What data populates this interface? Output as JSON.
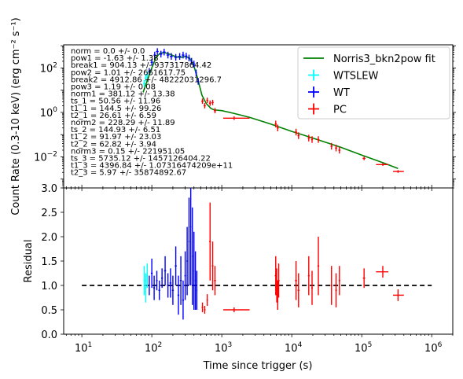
{
  "chart_data": [
    {
      "type": "line",
      "panel": "top",
      "xlabel": "",
      "ylabel": "Count Rate (0.3-10 keV) (erg cm⁻² s⁻¹)",
      "xscale": "log",
      "yscale": "log",
      "xlim": [
        5.5,
        2000000
      ],
      "ylim": [
        0.0004,
        1100
      ],
      "yticks": [
        {
          "v": 100,
          "base": "10",
          "exp": "2"
        },
        {
          "v": 1,
          "base": "10",
          "exp": "0"
        },
        {
          "v": 0.01,
          "base": "10",
          "exp": "−2"
        }
      ],
      "legend_position": "top-right",
      "legend": [
        {
          "label": "Norris3_bkn2pow fit",
          "color": "#008000",
          "kind": "line"
        },
        {
          "label": "WTSLEW",
          "color": "#00ffff",
          "kind": "cross"
        },
        {
          "label": "WT",
          "color": "#0000ff",
          "kind": "cross"
        },
        {
          "label": "PC",
          "color": "#ff0000",
          "kind": "cross"
        }
      ],
      "fit_line": {
        "color": "#008000",
        "x": [
          75,
          90,
          100,
          115,
          130,
          150,
          180,
          220,
          260,
          300,
          350,
          400,
          450,
          520,
          600,
          700,
          780,
          1000,
          1500,
          2500,
          5000,
          10000,
          20000,
          50000,
          100000,
          200000,
          330000
        ],
        "y": [
          8,
          40,
          100,
          300,
          450,
          500,
          420,
          320,
          300,
          330,
          270,
          120,
          35,
          6,
          2.5,
          1.5,
          1.3,
          1.2,
          0.9,
          0.6,
          0.3,
          0.14,
          0.07,
          0.027,
          0.012,
          0.0055,
          0.003
        ]
      },
      "series": [
        {
          "name": "WTSLEW",
          "color": "#00ffff",
          "points": [
            {
              "x": 78,
              "y": 20,
              "xerr": 3,
              "yerr_log": 0.15
            },
            {
              "x": 82,
              "y": 35,
              "xerr": 3,
              "yerr_log": 0.15
            },
            {
              "x": 86,
              "y": 50,
              "xerr": 3,
              "yerr_log": 0.15
            }
          ]
        },
        {
          "name": "WT",
          "color": "#0000ff",
          "points": [
            {
              "x": 92,
              "y": 70,
              "xerr": 3,
              "yerr_log": 0.15
            },
            {
              "x": 100,
              "y": 180,
              "xerr": 4,
              "yerr_log": 0.15
            },
            {
              "x": 110,
              "y": 380,
              "xerr": 4,
              "yerr_log": 0.15
            },
            {
              "x": 120,
              "y": 550,
              "xerr": 5,
              "yerr_log": 0.15
            },
            {
              "x": 135,
              "y": 420,
              "xerr": 6,
              "yerr_log": 0.15
            },
            {
              "x": 150,
              "y": 520,
              "xerr": 7,
              "yerr_log": 0.15
            },
            {
              "x": 170,
              "y": 380,
              "xerr": 8,
              "yerr_log": 0.15
            },
            {
              "x": 190,
              "y": 330,
              "xerr": 9,
              "yerr_log": 0.15
            },
            {
              "x": 220,
              "y": 300,
              "xerr": 10,
              "yerr_log": 0.15
            },
            {
              "x": 250,
              "y": 330,
              "xerr": 12,
              "yerr_log": 0.15
            },
            {
              "x": 280,
              "y": 380,
              "xerr": 12,
              "yerr_log": 0.15
            },
            {
              "x": 310,
              "y": 340,
              "xerr": 12,
              "yerr_log": 0.15
            },
            {
              "x": 340,
              "y": 280,
              "xerr": 12,
              "yerr_log": 0.15
            },
            {
              "x": 370,
              "y": 200,
              "xerr": 12,
              "yerr_log": 0.15
            },
            {
              "x": 400,
              "y": 150,
              "xerr": 12,
              "yerr_log": 0.15
            },
            {
              "x": 430,
              "y": 60,
              "xerr": 12,
              "yerr_log": 0.15
            },
            {
              "x": 460,
              "y": 25,
              "xerr": 12,
              "yerr_log": 0.15
            }
          ]
        },
        {
          "name": "PC",
          "color": "#ff0000",
          "points": [
            {
              "x": 530,
              "y": 3.2,
              "xerr": 20,
              "yerr_log": 0.12
            },
            {
              "x": 570,
              "y": 2.0,
              "xerr": 20,
              "yerr_log": 0.12
            },
            {
              "x": 620,
              "y": 3.5,
              "xerr": 20,
              "yerr_log": 0.12
            },
            {
              "x": 680,
              "y": 2.6,
              "xerr": 25,
              "yerr_log": 0.12
            },
            {
              "x": 740,
              "y": 2.8,
              "xerr": 25,
              "yerr_log": 0.12
            },
            {
              "x": 800,
              "y": 1.2,
              "xerr": 30,
              "yerr_log": 0.12
            },
            {
              "x": 1500,
              "y": 0.55,
              "xerr_lo": 450,
              "xerr_hi": 1000,
              "yerr_log": 0.08
            },
            {
              "x": 5900,
              "y": 0.3,
              "xerr": 200,
              "yerr_log": 0.15
            },
            {
              "x": 6300,
              "y": 0.2,
              "xerr": 200,
              "yerr_log": 0.15
            },
            {
              "x": 11500,
              "y": 0.13,
              "xerr": 400,
              "yerr_log": 0.15
            },
            {
              "x": 12500,
              "y": 0.09,
              "xerr": 400,
              "yerr_log": 0.15
            },
            {
              "x": 17500,
              "y": 0.07,
              "xerr": 600,
              "yerr_log": 0.15
            },
            {
              "x": 19500,
              "y": 0.06,
              "xerr": 600,
              "yerr_log": 0.15
            },
            {
              "x": 24000,
              "y": 0.06,
              "xerr": 800,
              "yerr_log": 0.15
            },
            {
              "x": 37000,
              "y": 0.03,
              "xerr": 1200,
              "yerr_log": 0.15
            },
            {
              "x": 43000,
              "y": 0.025,
              "xerr": 1500,
              "yerr_log": 0.15
            },
            {
              "x": 48000,
              "y": 0.02,
              "xerr": 1600,
              "yerr_log": 0.15
            },
            {
              "x": 108000,
              "y": 0.0085,
              "xerr": 5000,
              "yerr_log": 0.08
            },
            {
              "x": 200000,
              "y": 0.0045,
              "xerr_lo": 40000,
              "xerr_hi": 40000,
              "yerr_log": 0.06
            },
            {
              "x": 330000,
              "y": 0.0022,
              "xerr_lo": 50000,
              "xerr_hi": 70000,
              "yerr_log": 0.06
            }
          ]
        }
      ],
      "annotations": [
        "norm = 0.0 +/- 0.0",
        "pow1 = -1.63 +/- 1.38",
        "break1 = 904.13 +/- 937317864.42",
        "pow2 = 1.01 +/- 2661617.75",
        "break2 = 4912.86 +/- 48222031296.7",
        "pow3 = 1.19 +/- 0.08",
        "norm1 = 381.12 +/- 13.38",
        "ts_1 = 50.56 +/- 11.96",
        "t1_1 = 144.5 +/- 99.26",
        "t2_1 = 26.61 +/- 6.59",
        "norm2 = 228.29 +/- 11.89",
        "ts_2 = 144.93 +/- 6.51",
        "t1_2 = 91.97 +/- 23.03",
        "t2_2 = 62.82 +/- 3.94",
        "norm3 = 0.15 +/- 221951.05",
        "ts_3 = 5735.12 +/- 1457126404.22",
        "t1_3 = 4396.84 +/- 1.07316474209e+11",
        "t2_3 = 5.97 +/- 35874892.67"
      ]
    },
    {
      "type": "scatter",
      "panel": "bottom",
      "xlabel": "Time since trigger (s)",
      "ylabel": "Residual",
      "xscale": "log",
      "xlim": [
        5.5,
        2000000
      ],
      "ylim": [
        0.0,
        3.0
      ],
      "yticks": [
        "0.0",
        "0.5",
        "1.0",
        "1.5",
        "2.0",
        "2.5",
        "3.0"
      ],
      "xticks": [
        {
          "v": 10,
          "base": "10",
          "exp": "1"
        },
        {
          "v": 100,
          "base": "10",
          "exp": "2"
        },
        {
          "v": 1000,
          "base": "10",
          "exp": "3"
        },
        {
          "v": 10000,
          "base": "10",
          "exp": "4"
        },
        {
          "v": 100000,
          "base": "10",
          "exp": "5"
        },
        {
          "v": 1000000,
          "base": "10",
          "exp": "6"
        }
      ],
      "reference_line": {
        "y": 1.0,
        "x": [
          10,
          1000000
        ],
        "style": "dashed",
        "color": "#000000"
      },
      "series": [
        {
          "name": "WTSLEW",
          "color": "#00ffff",
          "points": [
            {
              "x": 78,
              "y": 1.1,
              "xerr": 2,
              "yerr": 0.3
            },
            {
              "x": 82,
              "y": 0.95,
              "xerr": 2,
              "yerr": 0.3
            },
            {
              "x": 86,
              "y": 1.2,
              "xerr": 2,
              "yerr": 0.25
            }
          ]
        },
        {
          "name": "WT",
          "color": "#0000ff",
          "points": [
            {
              "x": 92,
              "y": 1.0,
              "xerr": 2,
              "yerr": 0.2
            },
            {
              "x": 100,
              "y": 1.25,
              "xerr": 3,
              "yerr": 0.3
            },
            {
              "x": 108,
              "y": 0.95,
              "xerr": 3,
              "yerr": 0.25
            },
            {
              "x": 118,
              "y": 1.1,
              "xerr": 3,
              "yerr": 0.2
            },
            {
              "x": 128,
              "y": 0.9,
              "xerr": 4,
              "yerr": 0.2
            },
            {
              "x": 140,
              "y": 1.15,
              "xerr": 4,
              "yerr": 0.2
            },
            {
              "x": 155,
              "y": 1.3,
              "xerr": 5,
              "yerr": 0.3
            },
            {
              "x": 170,
              "y": 1.0,
              "xerr": 5,
              "yerr": 0.25
            },
            {
              "x": 185,
              "y": 1.05,
              "xerr": 6,
              "yerr": 0.3
            },
            {
              "x": 200,
              "y": 0.9,
              "xerr": 6,
              "yerr": 0.3
            },
            {
              "x": 220,
              "y": 1.4,
              "xerr": 7,
              "yerr": 0.4
            },
            {
              "x": 240,
              "y": 0.8,
              "xerr": 7,
              "yerr": 0.4
            },
            {
              "x": 260,
              "y": 1.1,
              "xerr": 8,
              "yerr": 0.5
            },
            {
              "x": 280,
              "y": 0.7,
              "xerr": 8,
              "yerr": 0.4
            },
            {
              "x": 300,
              "y": 1.2,
              "xerr": 8,
              "yerr": 0.5
            },
            {
              "x": 320,
              "y": 1.5,
              "xerr": 8,
              "yerr": 0.7
            },
            {
              "x": 340,
              "y": 1.9,
              "xerr": 8,
              "yerr": 0.9
            },
            {
              "x": 360,
              "y": 2.2,
              "xerr": 8,
              "yerr": 1.2
            },
            {
              "x": 380,
              "y": 1.6,
              "xerr": 8,
              "yerr": 1.0
            },
            {
              "x": 400,
              "y": 1.3,
              "xerr": 8,
              "yerr": 0.8
            },
            {
              "x": 420,
              "y": 1.1,
              "xerr": 8,
              "yerr": 0.6
            },
            {
              "x": 440,
              "y": 0.9,
              "xerr": 8,
              "yerr": 0.4
            }
          ]
        },
        {
          "name": "PC",
          "color": "#ff0000",
          "points": [
            {
              "x": 530,
              "y": 0.55,
              "xerr": 15,
              "yerr": 0.1
            },
            {
              "x": 570,
              "y": 0.5,
              "xerr": 15,
              "yerr": 0.08
            },
            {
              "x": 620,
              "y": 0.7,
              "xerr": 15,
              "yerr": 0.12
            },
            {
              "x": 680,
              "y": 1.9,
              "xerr": 20,
              "yerr": 0.8
            },
            {
              "x": 740,
              "y": 1.4,
              "xerr": 20,
              "yerr": 0.5
            },
            {
              "x": 800,
              "y": 1.1,
              "xerr": 25,
              "yerr": 0.3
            },
            {
              "x": 1500,
              "y": 0.5,
              "xerr_lo": 450,
              "xerr_hi": 1000,
              "yerr": 0.05
            },
            {
              "x": 5900,
              "y": 1.2,
              "xerr": 200,
              "yerr": 0.4
            },
            {
              "x": 6100,
              "y": 1.0,
              "xerr": 200,
              "yerr": 0.35
            },
            {
              "x": 6300,
              "y": 0.8,
              "xerr": 200,
              "yerr": 0.3
            },
            {
              "x": 6500,
              "y": 1.1,
              "xerr": 200,
              "yerr": 0.35
            },
            {
              "x": 11500,
              "y": 1.1,
              "xerr": 400,
              "yerr": 0.4
            },
            {
              "x": 12500,
              "y": 0.9,
              "xerr": 400,
              "yerr": 0.35
            },
            {
              "x": 17500,
              "y": 1.2,
              "xerr": 500,
              "yerr": 0.4
            },
            {
              "x": 19500,
              "y": 0.95,
              "xerr": 500,
              "yerr": 0.35
            },
            {
              "x": 24000,
              "y": 1.4,
              "xerr": 700,
              "yerr": 0.6
            },
            {
              "x": 37000,
              "y": 1.0,
              "xerr": 1000,
              "yerr": 0.4
            },
            {
              "x": 43000,
              "y": 0.9,
              "xerr": 1200,
              "yerr": 0.35
            },
            {
              "x": 48000,
              "y": 1.1,
              "xerr": 1300,
              "yerr": 0.3
            },
            {
              "x": 108000,
              "y": 1.15,
              "xerr": 4000,
              "yerr": 0.2
            },
            {
              "x": 200000,
              "y": 1.28,
              "xerr_lo": 40000,
              "xerr_hi": 40000,
              "yerr": 0.12
            },
            {
              "x": 330000,
              "y": 0.8,
              "xerr_lo": 50000,
              "xerr_hi": 70000,
              "yerr": 0.12
            }
          ]
        }
      ]
    }
  ]
}
